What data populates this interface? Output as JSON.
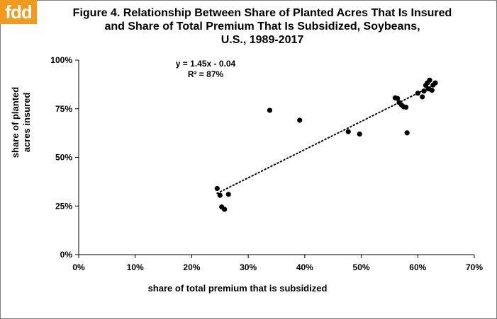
{
  "logo": {
    "text": "fdd",
    "color": "#f29a1f"
  },
  "title": {
    "line1": "Figure 4.  Relationship Between Share of Planted Acres That Is Insured",
    "line2": "and Share of Total Premium That Is Subsidized, Soybeans,",
    "line3": "U.S., 1989-2017"
  },
  "trendline": {
    "equation": "y = 1.45x - 0.04",
    "r_squared": "R² = 87%"
  },
  "chart_data": {
    "type": "scatter",
    "title": "Figure 4.  Relationship Between Share of Planted Acres That Is Insured and Share of Total Premium That Is Subsidized, Soybeans, U.S., 1989-2017",
    "xlabel": "share of total premium that is subsidized",
    "ylabel_lines": [
      "share of planted",
      "acres insured"
    ],
    "xlim": [
      0,
      0.7
    ],
    "ylim": [
      0,
      1.0
    ],
    "x_ticks": [
      {
        "value": 0.0,
        "label": "0%"
      },
      {
        "value": 0.1,
        "label": "10%"
      },
      {
        "value": 0.2,
        "label": "20%"
      },
      {
        "value": 0.3,
        "label": "30%"
      },
      {
        "value": 0.4,
        "label": "40%"
      },
      {
        "value": 0.5,
        "label": "50%"
      },
      {
        "value": 0.6,
        "label": "60%"
      },
      {
        "value": 0.7,
        "label": "70%"
      }
    ],
    "y_ticks": [
      {
        "value": 0.0,
        "label": "0%"
      },
      {
        "value": 0.25,
        "label": "25%"
      },
      {
        "value": 0.5,
        "label": "50%"
      },
      {
        "value": 0.75,
        "label": "75%"
      },
      {
        "value": 1.0,
        "label": "100%"
      }
    ],
    "grid": false,
    "legend": "none",
    "marker_color": "#000000",
    "points": [
      {
        "x": 0.245,
        "y": 0.34
      },
      {
        "x": 0.25,
        "y": 0.305
      },
      {
        "x": 0.253,
        "y": 0.245
      },
      {
        "x": 0.258,
        "y": 0.233
      },
      {
        "x": 0.265,
        "y": 0.31
      },
      {
        "x": 0.338,
        "y": 0.742
      },
      {
        "x": 0.391,
        "y": 0.691
      },
      {
        "x": 0.477,
        "y": 0.632
      },
      {
        "x": 0.497,
        "y": 0.62
      },
      {
        "x": 0.56,
        "y": 0.806
      },
      {
        "x": 0.564,
        "y": 0.803
      },
      {
        "x": 0.567,
        "y": 0.782
      },
      {
        "x": 0.571,
        "y": 0.77
      },
      {
        "x": 0.575,
        "y": 0.76
      },
      {
        "x": 0.579,
        "y": 0.758
      },
      {
        "x": 0.581,
        "y": 0.626
      },
      {
        "x": 0.6,
        "y": 0.83
      },
      {
        "x": 0.608,
        "y": 0.811
      },
      {
        "x": 0.611,
        "y": 0.841
      },
      {
        "x": 0.614,
        "y": 0.87
      },
      {
        "x": 0.617,
        "y": 0.883
      },
      {
        "x": 0.619,
        "y": 0.852
      },
      {
        "x": 0.621,
        "y": 0.897
      },
      {
        "x": 0.625,
        "y": 0.845
      },
      {
        "x": 0.627,
        "y": 0.872
      },
      {
        "x": 0.631,
        "y": 0.883
      }
    ],
    "trendline": {
      "slope": 1.45,
      "intercept": -0.04,
      "x_range": [
        0.245,
        0.631
      ],
      "style": "dotted"
    }
  }
}
